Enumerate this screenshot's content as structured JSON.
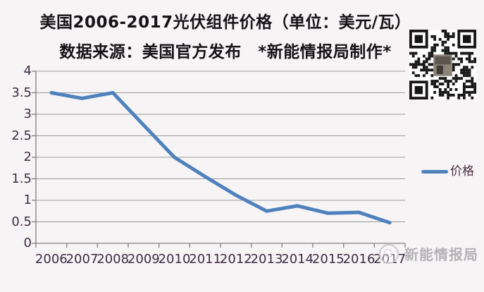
{
  "header": {
    "title_line1": "美国2006-2017光伏组件价格（单位：美元/瓦）",
    "title_line2": "数据来源：美国官方发布　*新能情报局制作*"
  },
  "legend": {
    "label": "价格",
    "line_color": "#4f81bd"
  },
  "watermark": {
    "text": "新能情报局"
  },
  "colors": {
    "background": "#f6f4f5",
    "gridline": "#9b9b9b",
    "axis": "#7f7f7f",
    "axis_label": "#3d2b44",
    "series_blue": "#4f81bd",
    "title_text": "#161317",
    "watermark_gray": "#b5b2b6"
  },
  "chart_data": {
    "type": "line",
    "title": "美国2006-2017光伏组件价格（单位：美元/瓦）",
    "subtitle": "数据来源：美国官方发布 *新能情报局制作*",
    "categories": [
      "2006",
      "2007",
      "2008",
      "2009",
      "2010",
      "2011",
      "2012",
      "2013",
      "2014",
      "2015",
      "2016",
      "2017"
    ],
    "series": [
      {
        "name": "价格",
        "values": [
          3.5,
          3.37,
          3.5,
          2.75,
          2.0,
          1.55,
          1.12,
          0.75,
          0.87,
          0.7,
          0.72,
          0.48
        ],
        "color": "#4f81bd"
      }
    ],
    "xlabel": "",
    "ylabel": "",
    "ylim": [
      0,
      4
    ],
    "yticks": [
      0,
      0.5,
      1,
      1.5,
      2,
      2.5,
      3,
      3.5,
      4
    ],
    "grid": true,
    "legend_position": "right"
  }
}
